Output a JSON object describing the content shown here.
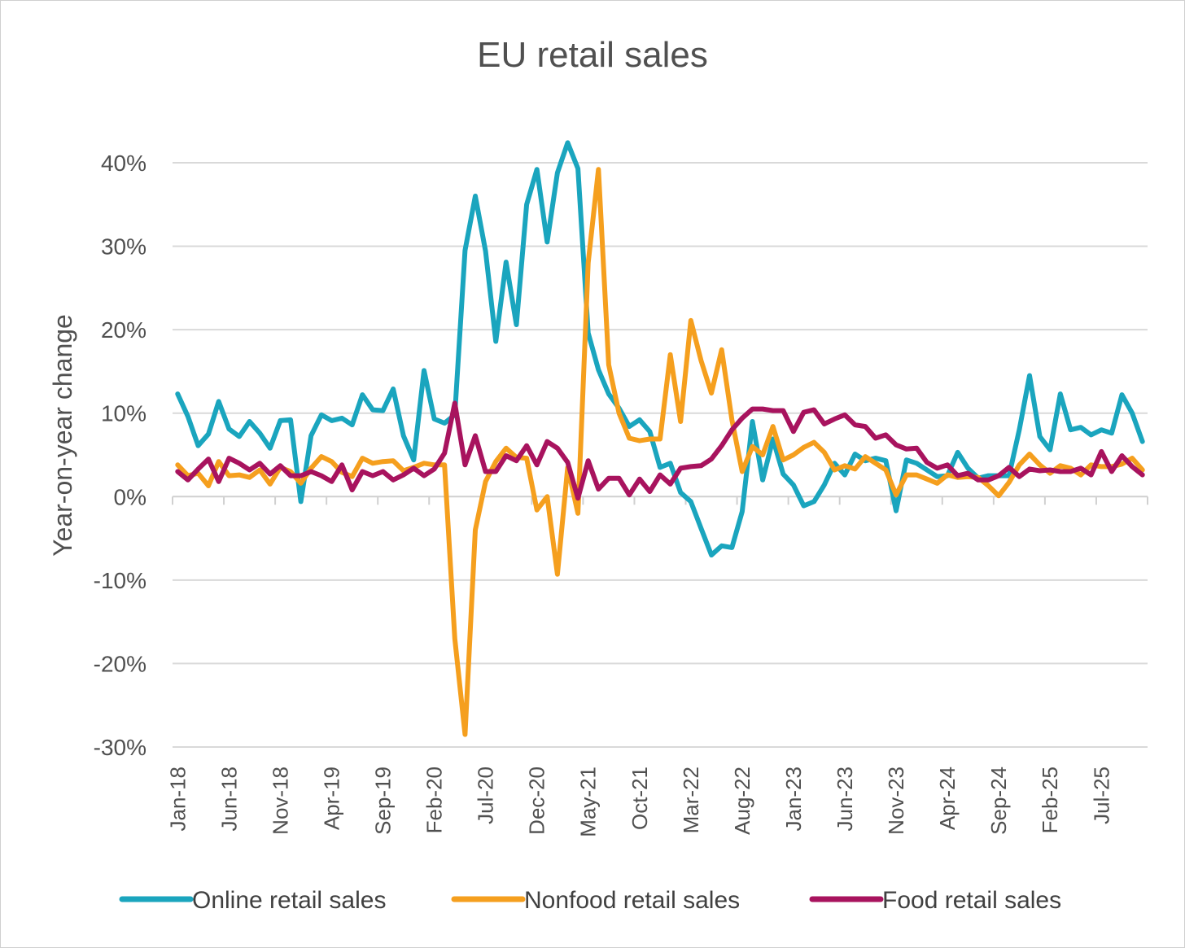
{
  "chart_data": {
    "type": "line",
    "title": "EU retail sales",
    "xlabel": "",
    "ylabel": "Year-on-year change",
    "ylim": [
      -30,
      40
    ],
    "yticks": [
      40,
      30,
      20,
      10,
      0,
      -10,
      -20,
      -30
    ],
    "ytick_labels": [
      "40%",
      "30%",
      "20%",
      "10%",
      "0%",
      "-10%",
      "-20%",
      "-30%"
    ],
    "x_tick_labels": [
      "Jan-18",
      "Jun-18",
      "Nov-18",
      "Apr-19",
      "Sep-19",
      "Feb-20",
      "Jul-20",
      "Dec-20",
      "May-21",
      "Oct-21",
      "Mar-22",
      "Aug-22",
      "Jan-23",
      "Jun-23",
      "Nov-23",
      "Apr-24",
      "Sep-24",
      "Feb-25",
      "Jul-25"
    ],
    "x_start": "Jan-18",
    "x_end": "Sep-25",
    "legend_position": "bottom",
    "grid": true,
    "series": [
      {
        "name": "Online retail sales",
        "color": "#1AA5BE",
        "values": [
          12.3,
          9.6,
          6.1,
          7.5,
          11.4,
          8.1,
          7.2,
          9.0,
          7.6,
          5.8,
          9.1,
          9.2,
          -0.6,
          7.3,
          9.8,
          9.1,
          9.4,
          8.6,
          12.2,
          10.4,
          10.3,
          12.9,
          7.3,
          4.4,
          15.1,
          9.3,
          8.8,
          9.8,
          29.5,
          36.0,
          29.4,
          18.6,
          28.1,
          20.6,
          35.0,
          39.2,
          30.5,
          38.8,
          42.4,
          39.3,
          19.6,
          15.2,
          12.3,
          10.6,
          8.4,
          9.2,
          7.8,
          3.5,
          4.0,
          0.5,
          -0.6,
          -3.8,
          -7.0,
          -5.9,
          -6.1,
          -1.8,
          9.0,
          2.0,
          6.9,
          2.7,
          1.4,
          -1.1,
          -0.6,
          1.4,
          4.0,
          2.6,
          5.1,
          4.3,
          4.6,
          4.3,
          -1.7,
          4.4,
          4.0,
          3.2,
          2.4,
          2.5,
          5.3,
          3.4,
          2.2,
          2.5,
          2.5,
          2.5,
          8.0,
          14.5,
          7.2,
          5.6,
          12.3,
          8.0,
          8.3,
          7.4,
          8.0,
          7.6,
          12.2,
          10.0,
          6.6
        ]
      },
      {
        "name": "Nonfood retail sales",
        "color": "#F59F1E",
        "values": [
          3.8,
          2.5,
          2.8,
          1.3,
          4.2,
          2.5,
          2.6,
          2.3,
          3.2,
          1.5,
          3.5,
          3.0,
          1.6,
          3.4,
          4.8,
          4.2,
          2.9,
          2.4,
          4.6,
          4.0,
          4.2,
          4.3,
          3.1,
          3.5,
          4.0,
          3.8,
          3.8,
          -17.0,
          -28.5,
          -4.0,
          1.8,
          4.2,
          5.8,
          4.7,
          4.6,
          -1.6,
          0.0,
          -9.3,
          3.5,
          -2.0,
          28.0,
          39.2,
          15.8,
          10.0,
          7.0,
          6.7,
          6.9,
          6.9,
          17.0,
          9.0,
          21.1,
          16.3,
          12.4,
          17.6,
          9.2,
          3.0,
          6.0,
          5.0,
          8.4,
          4.4,
          5.0,
          5.9,
          6.5,
          5.3,
          3.2,
          3.7,
          3.3,
          4.8,
          4.0,
          3.2,
          0.2,
          2.6,
          2.6,
          2.1,
          1.6,
          2.6,
          2.3,
          2.4,
          2.3,
          1.3,
          0.1,
          1.7,
          3.8,
          5.1,
          3.8,
          2.8,
          3.7,
          3.4,
          2.6,
          3.8,
          3.6,
          3.6,
          3.9,
          4.6,
          3.2
        ]
      },
      {
        "name": "Food retail sales",
        "color": "#A8135E",
        "values": [
          3.0,
          2.0,
          3.3,
          4.5,
          1.8,
          4.6,
          4.0,
          3.2,
          4.0,
          2.7,
          3.7,
          2.5,
          2.5,
          3.0,
          2.5,
          1.8,
          3.8,
          0.8,
          3.0,
          2.5,
          3.0,
          2.0,
          2.6,
          3.4,
          2.5,
          3.3,
          5.2,
          11.2,
          3.8,
          7.3,
          3.0,
          3.0,
          4.9,
          4.3,
          6.1,
          3.8,
          6.6,
          5.8,
          4.1,
          -0.2,
          4.3,
          0.9,
          2.2,
          2.2,
          0.2,
          2.1,
          0.6,
          2.6,
          1.5,
          3.4,
          3.6,
          3.7,
          4.5,
          6.1,
          8.0,
          9.4,
          10.5,
          10.5,
          10.3,
          10.3,
          7.8,
          10.1,
          10.4,
          8.7,
          9.3,
          9.8,
          8.6,
          8.4,
          7.0,
          7.4,
          6.2,
          5.7,
          5.8,
          4.1,
          3.4,
          3.8,
          2.5,
          2.8,
          2.0,
          2.0,
          2.5,
          3.5,
          2.4,
          3.3,
          3.1,
          3.2,
          3.0,
          3.0,
          3.4,
          2.6,
          5.4,
          3.0,
          4.9,
          3.6,
          2.6
        ]
      }
    ]
  }
}
